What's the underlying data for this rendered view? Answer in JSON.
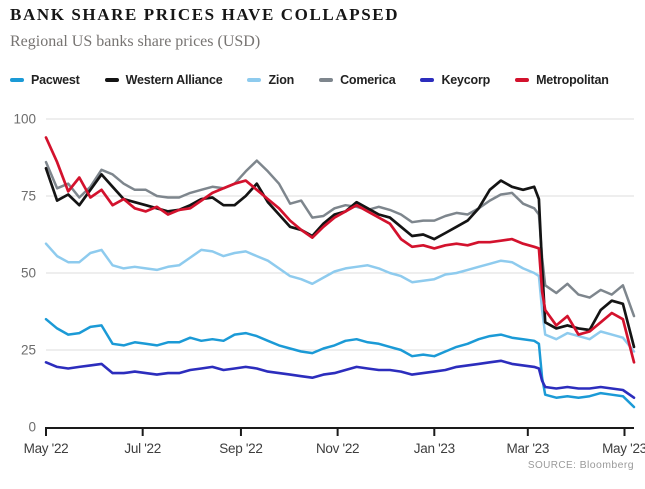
{
  "header": {
    "title": "BANK SHARE PRICES HAVE COLLAPSED",
    "subtitle": "Regional US banks share prices (USD)"
  },
  "source": {
    "label": "SOURCE:",
    "value": "Bloomberg"
  },
  "chart_data": {
    "type": "line",
    "title": "BANK SHARE PRICES HAVE COLLAPSED",
    "subtitle": "Regional US banks share prices (USD)",
    "ylabel": "",
    "xlabel": "",
    "ylim": [
      0,
      100
    ],
    "y_ticks": [
      0,
      25,
      50,
      75,
      100
    ],
    "grid": "horizontal",
    "legend_position": "top",
    "x_tick_labels": [
      "May '22",
      "Jul '22",
      "Sep '22",
      "Nov '22",
      "Jan '23",
      "Mar '23",
      "May '23"
    ],
    "x_tick_days": [
      0,
      61,
      123,
      184,
      245,
      304,
      365
    ],
    "x_range_days": [
      0,
      371
    ],
    "x_dates": [
      "2022-05-02",
      "2022-05-09",
      "2022-05-16",
      "2022-05-23",
      "2022-05-30",
      "2022-06-06",
      "2022-06-13",
      "2022-06-20",
      "2022-06-27",
      "2022-07-04",
      "2022-07-11",
      "2022-07-18",
      "2022-07-25",
      "2022-08-01",
      "2022-08-08",
      "2022-08-15",
      "2022-08-22",
      "2022-08-29",
      "2022-09-05",
      "2022-09-12",
      "2022-09-19",
      "2022-09-26",
      "2022-10-03",
      "2022-10-10",
      "2022-10-17",
      "2022-10-24",
      "2022-10-31",
      "2022-11-07",
      "2022-11-14",
      "2022-11-21",
      "2022-11-28",
      "2022-12-05",
      "2022-12-12",
      "2022-12-19",
      "2022-12-26",
      "2023-01-02",
      "2023-01-09",
      "2023-01-16",
      "2023-01-23",
      "2023-01-30",
      "2023-02-06",
      "2023-02-13",
      "2023-02-20",
      "2023-02-27",
      "2023-03-06",
      "2023-03-09",
      "2023-03-11",
      "2023-03-13",
      "2023-03-20",
      "2023-03-27",
      "2023-04-03",
      "2023-04-10",
      "2023-04-17",
      "2023-04-24",
      "2023-05-01",
      "2023-05-08"
    ],
    "x_days": [
      0,
      7,
      14,
      21,
      28,
      35,
      42,
      49,
      56,
      63,
      70,
      77,
      84,
      91,
      98,
      105,
      112,
      119,
      126,
      133,
      140,
      147,
      154,
      161,
      168,
      175,
      182,
      189,
      196,
      203,
      210,
      217,
      224,
      231,
      238,
      245,
      252,
      259,
      266,
      273,
      280,
      287,
      294,
      301,
      308,
      311,
      313,
      315,
      322,
      329,
      336,
      343,
      350,
      357,
      364,
      371
    ],
    "series": [
      {
        "name": "Pacwest",
        "color": "#1b9ad6",
        "width": 2.5,
        "values": [
          35,
          32,
          30,
          30.5,
          32.5,
          33,
          27,
          26.5,
          27.5,
          27,
          26.5,
          27.5,
          27.5,
          29,
          28,
          28.5,
          28,
          30,
          30.5,
          29.5,
          28,
          26.5,
          25.5,
          24.5,
          24,
          25.5,
          26.5,
          28,
          28.5,
          27.5,
          27,
          26,
          25,
          23,
          23.5,
          23,
          24.5,
          26,
          27,
          28.5,
          29.5,
          30,
          29,
          28.5,
          28,
          27,
          16,
          10.5,
          9.5,
          10,
          9.5,
          10,
          11,
          10.5,
          10,
          6.5
        ]
      },
      {
        "name": "Western Alliance",
        "color": "#141414",
        "width": 2.7,
        "values": [
          84,
          73.5,
          75.5,
          72,
          77,
          82,
          78,
          74,
          73,
          72,
          71,
          70,
          70.5,
          72,
          74,
          74.5,
          72,
          72,
          75,
          79,
          73,
          69,
          65,
          64,
          62,
          66,
          69,
          70,
          73,
          71,
          69,
          68,
          65,
          62,
          62.5,
          61,
          63,
          65,
          67,
          71,
          77,
          80,
          78,
          77,
          78,
          74,
          52,
          34,
          32,
          33,
          32,
          31.5,
          38,
          41,
          40,
          26
        ]
      },
      {
        "name": "Zion",
        "color": "#8ecbee",
        "width": 2.5,
        "values": [
          59.5,
          55.5,
          53.5,
          53.5,
          56.5,
          57.5,
          52.5,
          51.5,
          52,
          51.5,
          51,
          52,
          52.5,
          55,
          57.5,
          57,
          55.5,
          56.5,
          57,
          55.5,
          54,
          51.5,
          49,
          48,
          46.5,
          48.5,
          50.5,
          51.5,
          52,
          52.5,
          51.5,
          50,
          49,
          47,
          47.5,
          48,
          49.5,
          50,
          51,
          52,
          53,
          54,
          53.5,
          51.5,
          50,
          49,
          38,
          30,
          28.5,
          30.5,
          29.5,
          28.5,
          31,
          30,
          29,
          24.5
        ]
      },
      {
        "name": "Comerica",
        "color": "#7e868d",
        "width": 2.5,
        "values": [
          86,
          77.5,
          79,
          74.5,
          78,
          83.5,
          82,
          79,
          77,
          77,
          75,
          74.5,
          74.5,
          76,
          77,
          78,
          77.5,
          79,
          83,
          86.5,
          83,
          79,
          72.5,
          73.5,
          68,
          68.5,
          71,
          72,
          71.5,
          70.5,
          71.5,
          70.5,
          69,
          66.5,
          67,
          67,
          68.5,
          69.5,
          69,
          71,
          73.5,
          75.5,
          76,
          72.5,
          71,
          69,
          55,
          46,
          43.5,
          46.5,
          43,
          42,
          44.5,
          43,
          46,
          36
        ]
      },
      {
        "name": "Keycorp",
        "color": "#2c2dbd",
        "width": 2.6,
        "values": [
          21,
          19.5,
          19,
          19.5,
          20,
          20.5,
          17.5,
          17.5,
          18,
          17.5,
          17,
          17.5,
          17.5,
          18.5,
          19,
          19.5,
          18.5,
          19,
          19.5,
          19,
          18,
          17.5,
          17,
          16.5,
          16,
          17,
          17.5,
          18.5,
          19.5,
          19,
          18.5,
          18.5,
          18,
          17,
          17.5,
          18,
          18.5,
          19.5,
          20,
          20.5,
          21,
          21.5,
          20.5,
          20,
          19.5,
          19,
          15,
          13,
          12.5,
          13,
          12.5,
          12.5,
          13,
          12.5,
          12,
          9.5
        ]
      },
      {
        "name": "Metropolitan",
        "color": "#d3122d",
        "width": 2.7,
        "values": [
          94,
          86,
          76.5,
          81,
          74.5,
          77,
          72,
          74,
          71,
          70,
          71.5,
          69,
          70.5,
          71,
          73.5,
          76,
          77.5,
          79,
          80,
          77,
          74,
          71,
          67,
          64,
          61.5,
          65,
          68,
          70,
          72,
          70,
          68,
          66,
          61,
          58.5,
          59,
          58,
          59,
          59.5,
          59,
          60,
          60,
          60.5,
          61,
          59.5,
          58.5,
          58,
          44,
          38,
          33,
          36,
          30,
          31,
          34,
          37,
          35,
          21
        ]
      }
    ],
    "draw_order": [
      "Comerica",
      "Zion",
      "Pacwest",
      "Keycorp",
      "Western Alliance",
      "Metropolitan"
    ],
    "colors": {
      "grid": "#dcdcdc",
      "axis": "#1a1a1a",
      "y_tick_label": "#6d6d6d",
      "x_tick_label": "#3d3d3d"
    }
  }
}
